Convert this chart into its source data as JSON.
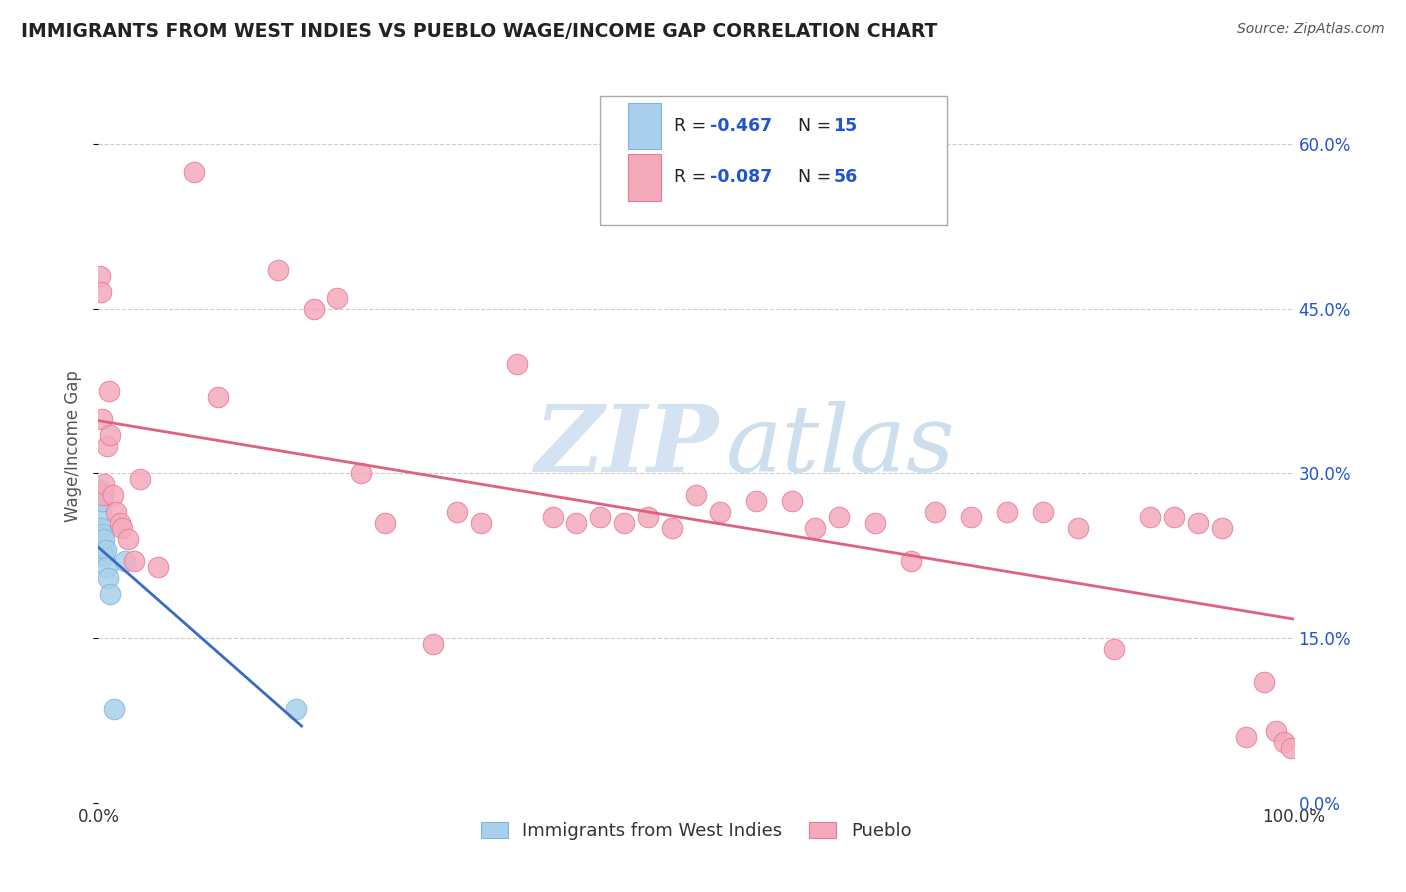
{
  "title": "IMMIGRANTS FROM WEST INDIES VS PUEBLO WAGE/INCOME GAP CORRELATION CHART",
  "source_text": "Source: ZipAtlas.com",
  "ylabel": "Wage/Income Gap",
  "xlim": [
    0,
    100
  ],
  "ylim": [
    0,
    65
  ],
  "yticks": [
    0,
    15,
    30,
    45,
    60
  ],
  "ytick_labels": [
    "0.0%",
    "15.0%",
    "30.0%",
    "45.0%",
    "60.0%"
  ],
  "xtick_labels": [
    "0.0%",
    "100.0%"
  ],
  "legend_label1": "Immigrants from West Indies",
  "legend_label2": "Pueblo",
  "blue_color": "#A8D0EC",
  "pink_color": "#F4AABB",
  "blue_edge": "#80B4D8",
  "pink_edge": "#E87898",
  "trend_blue": "#3A6BC4",
  "trend_pink": "#E06080",
  "text_blue": "#2255CC",
  "background_color": "#FFFFFF",
  "watermark_zip": "ZIP",
  "watermark_atlas": "atlas",
  "blue_x": [
    0.15,
    0.2,
    0.25,
    0.3,
    0.35,
    0.4,
    0.45,
    0.5,
    0.6,
    0.7,
    0.8,
    1.0,
    1.3,
    2.2,
    16.5
  ],
  "blue_y": [
    28.5,
    26.5,
    25.0,
    27.5,
    24.5,
    23.0,
    22.5,
    24.0,
    23.0,
    21.5,
    20.5,
    19.0,
    8.5,
    22.0,
    8.5
  ],
  "pink_x": [
    0.1,
    0.2,
    0.3,
    0.4,
    0.5,
    0.7,
    0.9,
    1.0,
    1.2,
    1.5,
    1.8,
    2.0,
    2.5,
    3.0,
    3.5,
    5.0,
    8.0,
    10.0,
    15.0,
    18.0,
    20.0,
    22.0,
    24.0,
    28.0,
    30.0,
    32.0,
    35.0,
    38.0,
    40.0,
    42.0,
    44.0,
    46.0,
    48.0,
    50.0,
    52.0,
    55.0,
    58.0,
    60.0,
    62.0,
    65.0,
    68.0,
    70.0,
    73.0,
    76.0,
    79.0,
    82.0,
    85.0,
    88.0,
    90.0,
    92.0,
    94.0,
    96.0,
    97.5,
    98.5,
    99.2,
    99.8
  ],
  "pink_y": [
    48.0,
    46.5,
    35.0,
    28.0,
    29.0,
    32.5,
    37.5,
    33.5,
    28.0,
    26.5,
    25.5,
    25.0,
    24.0,
    22.0,
    29.5,
    21.5,
    57.5,
    37.0,
    48.5,
    45.0,
    46.0,
    30.0,
    25.5,
    14.5,
    26.5,
    25.5,
    40.0,
    26.0,
    25.5,
    26.0,
    25.5,
    26.0,
    25.0,
    28.0,
    26.5,
    27.5,
    27.5,
    25.0,
    26.0,
    25.5,
    22.0,
    26.5,
    26.0,
    26.5,
    26.5,
    25.0,
    14.0,
    26.0,
    26.0,
    25.5,
    25.0,
    6.0,
    11.0,
    6.5,
    5.5,
    5.0
  ]
}
